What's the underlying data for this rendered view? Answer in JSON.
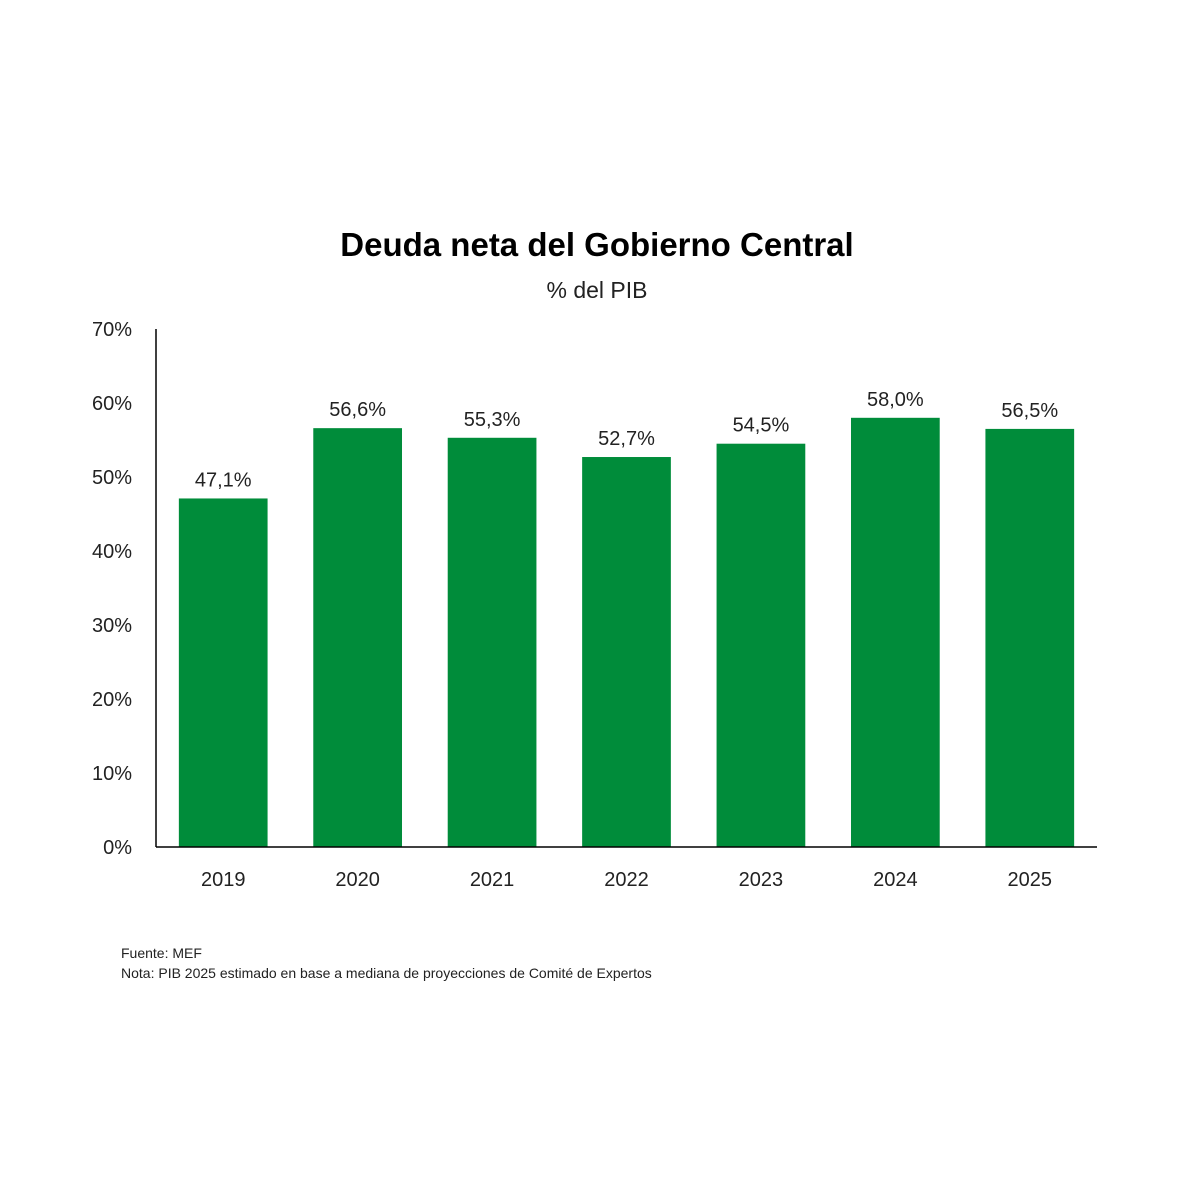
{
  "chart_data": {
    "type": "bar",
    "title": "Deuda neta del Gobierno Central",
    "subtitle": "% del PIB",
    "categories": [
      "2019",
      "2020",
      "2021",
      "2022",
      "2023",
      "2024",
      "2025"
    ],
    "values": [
      47.1,
      56.6,
      55.3,
      52.7,
      54.5,
      58.0,
      56.5
    ],
    "value_labels": [
      "47,1%",
      "56,6%",
      "55,3%",
      "52,7%",
      "54,5%",
      "58,0%",
      "56,5%"
    ],
    "ylim": [
      0,
      70
    ],
    "yticks": [
      0,
      10,
      20,
      30,
      40,
      50,
      60,
      70
    ],
    "ytick_labels": [
      "0%",
      "10%",
      "20%",
      "30%",
      "40%",
      "50%",
      "60%",
      "70%"
    ],
    "bar_color": "#008c3a",
    "grid": false,
    "legend": "none"
  },
  "notes": {
    "source": "Fuente: MEF",
    "note": "Nota: PIB 2025 estimado en base a mediana de proyecciones de Comité de Expertos"
  }
}
